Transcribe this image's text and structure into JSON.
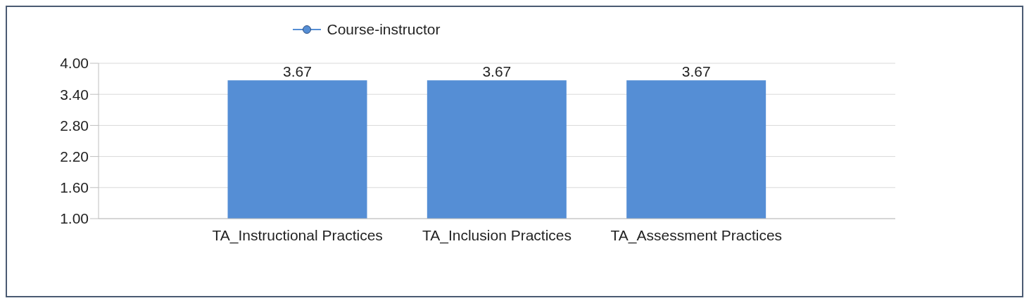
{
  "chart_data": {
    "type": "bar",
    "categories": [
      "TA_Instructional Practices",
      "TA_Inclusion Practices",
      "TA_Assessment Practices"
    ],
    "series": [
      {
        "name": "Course-instructor",
        "color": "#558ed5",
        "values": [
          3.67,
          3.67,
          3.67
        ]
      }
    ],
    "ylim": [
      1,
      4
    ],
    "yticks": [
      {
        "value": 1,
        "label": "1.00"
      },
      {
        "value": 1.6,
        "label": "1.60"
      },
      {
        "value": 2.2,
        "label": "2.20"
      },
      {
        "value": 2.8,
        "label": "2.80"
      },
      {
        "value": 3.4,
        "label": "3.40"
      },
      {
        "value": 4,
        "label": "4.00"
      }
    ],
    "grid": "y",
    "legend": "top",
    "marker": "circle",
    "data_labels": true
  }
}
